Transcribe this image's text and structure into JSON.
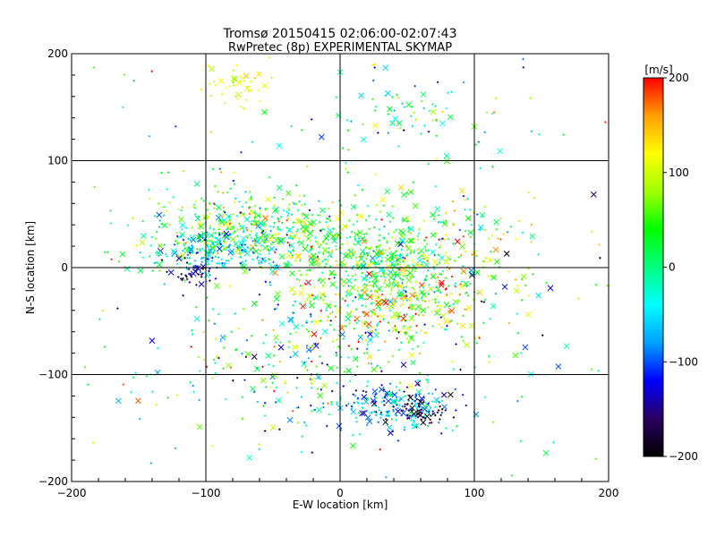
{
  "chart_data": {
    "type": "scatter",
    "title": "Tromsø 20150415 02:06:00-02:07:43",
    "subtitle": "RwPretec (8p) EXPERIMENTAL SKYMAP",
    "xlabel": "E-W location [km]",
    "ylabel": "N-S location [km]",
    "xlim": [
      -200,
      200
    ],
    "ylim": [
      -200,
      200
    ],
    "xticks": [
      -200,
      -100,
      0,
      100,
      200
    ],
    "yticks": [
      -200,
      -100,
      0,
      100,
      200
    ],
    "grid": true,
    "colorbar": {
      "label": "[m/s]",
      "range": [
        -200,
        200
      ],
      "ticks": [
        200,
        100,
        0,
        -100,
        -200
      ],
      "colormap": [
        "#000000",
        "#2a0060",
        "#0000ff",
        "#00a0ff",
        "#00ffff",
        "#00ff80",
        "#00ff00",
        "#a0ff00",
        "#ffff00",
        "#ffa000",
        "#ff0000"
      ]
    },
    "clusters": [
      {
        "center": [
          -60,
          35
        ],
        "spread": [
          45,
          18
        ],
        "velocity": 40,
        "vspread": 60,
        "count": 500
      },
      {
        "center": [
          -90,
          15
        ],
        "spread": [
          25,
          10
        ],
        "velocity": -60,
        "vspread": 40,
        "count": 160
      },
      {
        "center": [
          -110,
          -8
        ],
        "spread": [
          8,
          8
        ],
        "velocity": -150,
        "vspread": 30,
        "count": 40
      },
      {
        "center": [
          30,
          5
        ],
        "spread": [
          30,
          15
        ],
        "velocity": 20,
        "vspread": 50,
        "count": 250
      },
      {
        "center": [
          40,
          -30
        ],
        "spread": [
          35,
          25
        ],
        "velocity": 90,
        "vspread": 70,
        "count": 350
      },
      {
        "center": [
          10,
          -50
        ],
        "spread": [
          60,
          40
        ],
        "velocity": 0,
        "vspread": 80,
        "count": 200
      },
      {
        "center": [
          40,
          -130
        ],
        "spread": [
          25,
          10
        ],
        "velocity": -80,
        "vspread": 50,
        "count": 200
      },
      {
        "center": [
          60,
          -135
        ],
        "spread": [
          10,
          6
        ],
        "velocity": -190,
        "vspread": 15,
        "count": 45
      },
      {
        "center": [
          -75,
          170
        ],
        "spread": [
          12,
          8
        ],
        "velocity": 110,
        "vspread": 20,
        "count": 40
      },
      {
        "center": [
          45,
          150
        ],
        "spread": [
          35,
          20
        ],
        "velocity": 0,
        "vspread": 60,
        "count": 70
      },
      {
        "center": [
          -40,
          -100
        ],
        "spread": [
          60,
          30
        ],
        "velocity": 0,
        "vspread": 100,
        "count": 150
      },
      {
        "center": [
          0,
          0
        ],
        "spread": [
          150,
          150
        ],
        "velocity": 0,
        "vspread": 90,
        "count": 300
      },
      {
        "center": [
          80,
          20
        ],
        "spread": [
          40,
          30
        ],
        "velocity": 60,
        "vspread": 70,
        "count": 150
      }
    ]
  }
}
